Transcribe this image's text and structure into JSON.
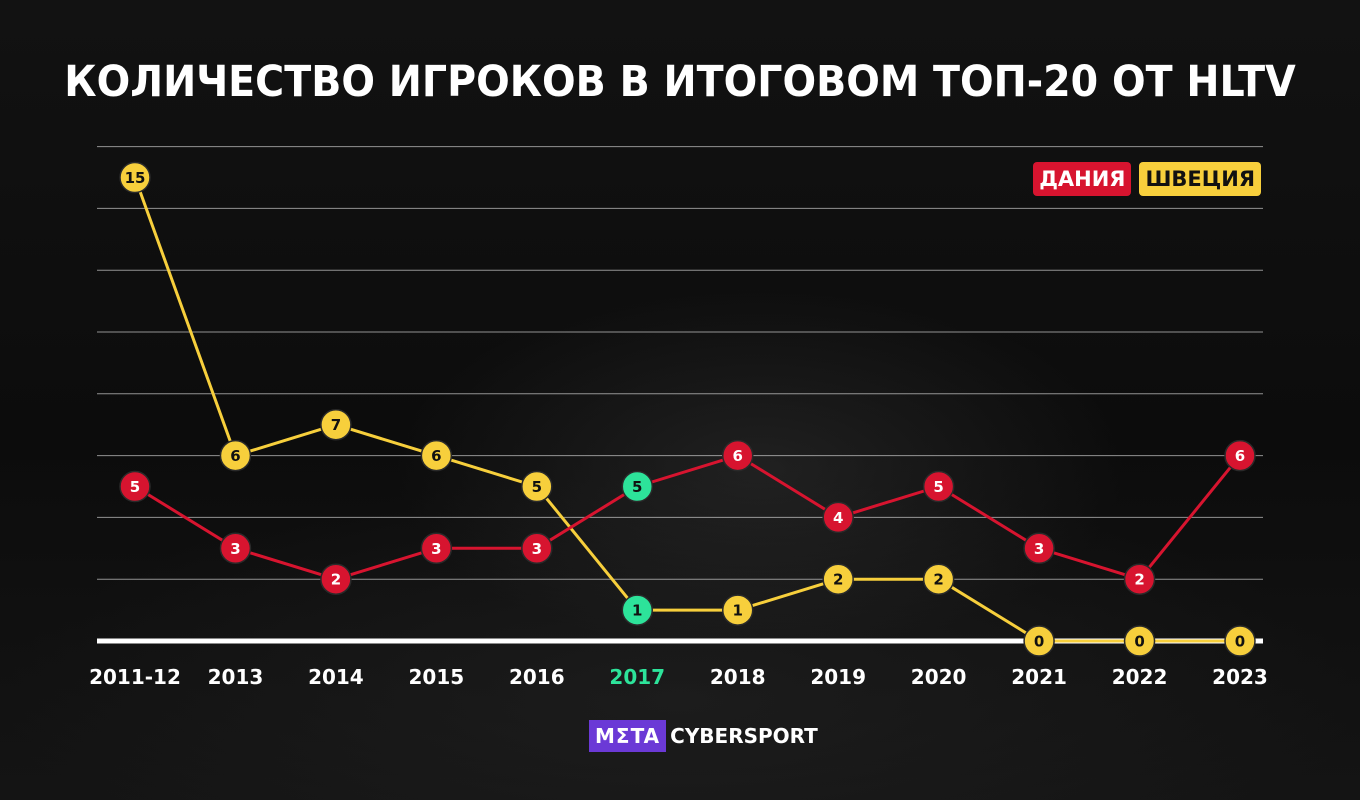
{
  "header": {
    "title": "КОЛИЧЕСТВО ИГРОКОВ В ИТОГОВОМ ТОП-20 ОТ HLTV"
  },
  "legend": {
    "denmark": "ДАНИЯ",
    "sweden": "ШВЕЦИЯ"
  },
  "branding": {
    "meta": "MΣTA",
    "cybersport": "CYBERSPORT"
  },
  "colors": {
    "denmark": "#d7142f",
    "sweden": "#f7cf3c",
    "highlight": "#2de39a",
    "gridline": "#ffffff"
  },
  "chart_data": {
    "type": "line",
    "title": "КОЛИЧЕСТВО ИГРОКОВ В ИТОГОВОМ ТОП-20 ОТ HLTV",
    "categories": [
      "2011-12",
      "2013",
      "2014",
      "2015",
      "2016",
      "2017",
      "2018",
      "2019",
      "2020",
      "2021",
      "2022",
      "2023"
    ],
    "highlight_category": "2017",
    "series": [
      {
        "name": "ДАНИЯ",
        "color": "#d7142f",
        "values": [
          5,
          3,
          2,
          3,
          3,
          5,
          6,
          4,
          5,
          3,
          2,
          6
        ]
      },
      {
        "name": "ШВЕЦИЯ",
        "color": "#f7cf3c",
        "values": [
          15,
          6,
          7,
          6,
          5,
          1,
          1,
          2,
          2,
          0,
          0,
          0
        ]
      }
    ],
    "ylim": [
      0,
      16
    ],
    "grid": true,
    "legend_position": "top-right"
  }
}
